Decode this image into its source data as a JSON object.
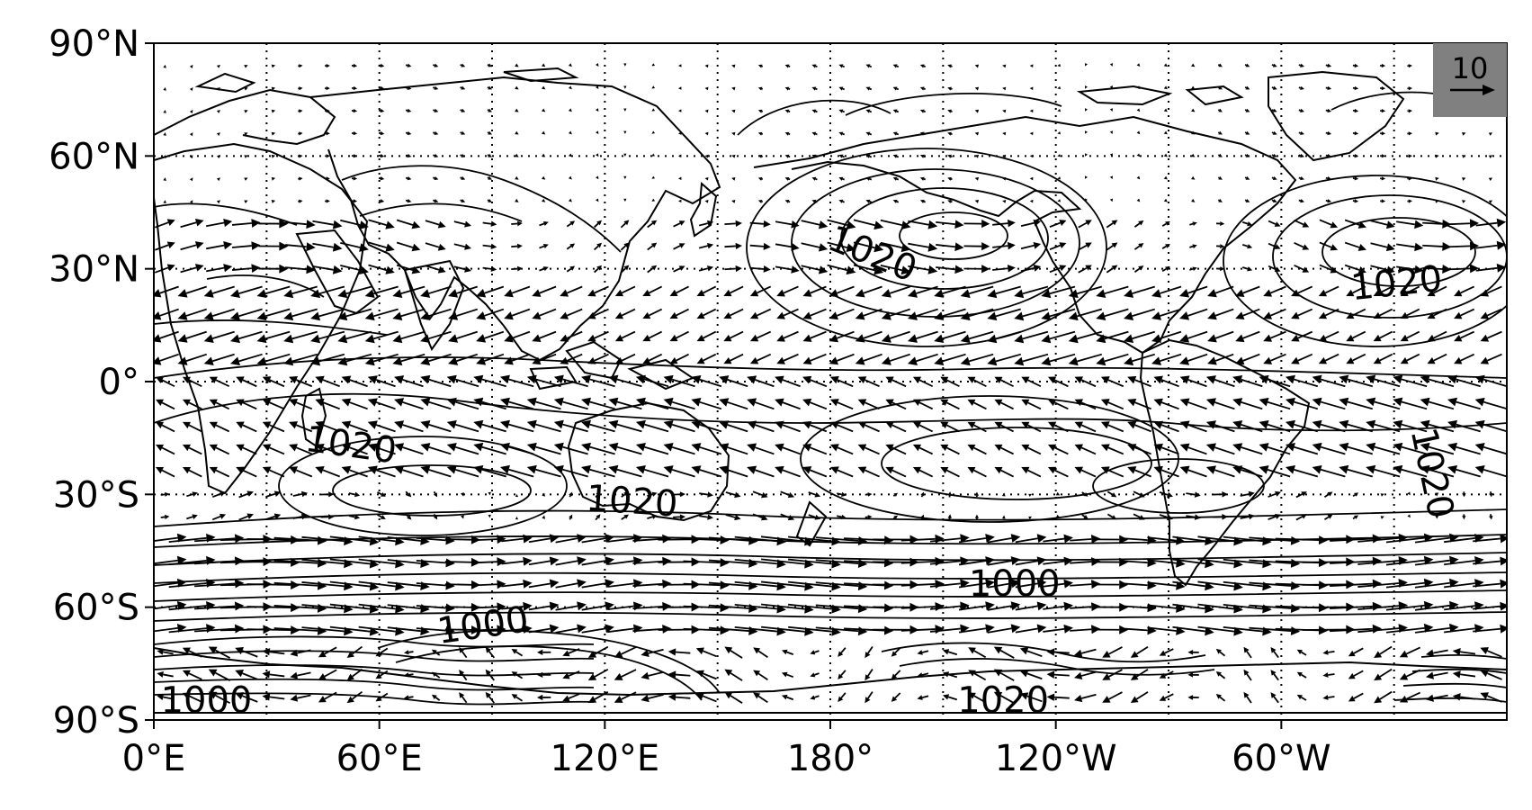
{
  "figure": {
    "type": "map",
    "description_fields": {
      "projection": "plate carree",
      "field_contours": "sea level pressure (hPa)",
      "vectors": "surface wind"
    },
    "axes": {
      "lon_range": [
        0,
        360
      ],
      "lat_range": [
        -90,
        90
      ],
      "grid": "dotted",
      "x_ticks": [
        {
          "lon": 0,
          "label": "0°E"
        },
        {
          "lon": 60,
          "label": "60°E"
        },
        {
          "lon": 120,
          "label": "120°E"
        },
        {
          "lon": 180,
          "label": "180°"
        },
        {
          "lon": 240,
          "label": "120°W"
        },
        {
          "lon": 300,
          "label": "60°W"
        }
      ],
      "y_ticks": [
        {
          "lat": 90,
          "label": "90°N"
        },
        {
          "lat": 60,
          "label": "60°N"
        },
        {
          "lat": 30,
          "label": "30°N"
        },
        {
          "lat": 0,
          "label": "0°"
        },
        {
          "lat": -30,
          "label": "30°S"
        },
        {
          "lat": -60,
          "label": "60°S"
        },
        {
          "lat": -90,
          "label": "90°S"
        }
      ],
      "grid_lon": [
        0,
        30,
        60,
        90,
        120,
        150,
        180,
        210,
        240,
        270,
        300,
        330
      ],
      "grid_lat": [
        -60,
        -30,
        0,
        30,
        60
      ]
    },
    "quiver_key": {
      "label": "10",
      "background": "#808080",
      "position": "top-right"
    },
    "contour_labels": [
      {
        "text": "1020",
        "lon": 190,
        "lat": 31,
        "rotate": 22
      },
      {
        "text": "1020",
        "lon": 331,
        "lat": 23,
        "rotate": -6
      },
      {
        "text": "1020",
        "lon": 52,
        "lat": -20,
        "rotate": 8
      },
      {
        "text": "1020",
        "lon": 127,
        "lat": -35,
        "rotate": 4
      },
      {
        "text": "1020",
        "lon": 337,
        "lat": -25,
        "rotate": 78
      },
      {
        "text": "1000",
        "lon": 229,
        "lat": -57,
        "rotate": 0
      },
      {
        "text": "1020",
        "lon": 226,
        "lat": -88,
        "rotate": 0
      },
      {
        "text": "1000",
        "lon": 88,
        "lat": -68,
        "rotate": -8
      },
      {
        "text": "1000",
        "lon": 14,
        "lat": -88,
        "rotate": 0
      }
    ],
    "colors": {
      "lines": "#000000",
      "background": "#ffffff",
      "key_box": "#808080"
    }
  }
}
